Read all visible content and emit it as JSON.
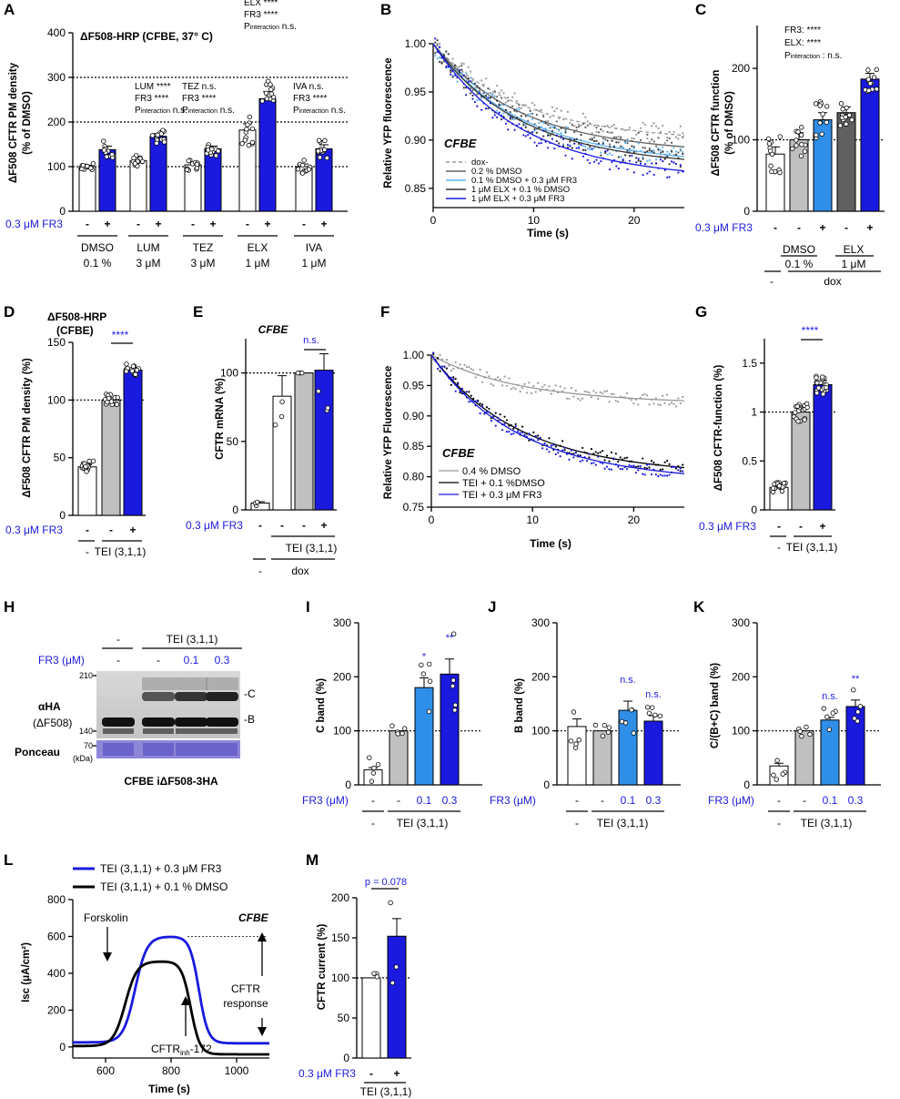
{
  "colors": {
    "blue": "#1a1adf",
    "lightblue": "#2f8fe8",
    "gray": "#c0c0c0",
    "darkgray": "#606060",
    "black": "#000000"
  },
  "panels": {
    "A": {
      "label": "A",
      "title": "ΔF508-HRP (CFBE, 37° C)",
      "ylabel": "ΔF508 CFTR PM density",
      "ylabel2": "(% of DMSO)",
      "fr3_label": "0.3 μM FR3",
      "minus": "-",
      "plus": "+",
      "groups": [
        {
          "name": "DMSO",
          "conc": "0.1 %"
        },
        {
          "name": "LUM",
          "conc": "3 μM"
        },
        {
          "name": "TEZ",
          "conc": "3 μM"
        },
        {
          "name": "ELX",
          "conc": "1 μM"
        },
        {
          "name": "IVA",
          "conc": "1 μM"
        }
      ],
      "stats": {
        "lum1": "LUM ****",
        "lum2": "FR3 ****",
        "lum3": "P",
        "lum3b": "interaction",
        "lum3c": " n.s.",
        "tez1": "TEZ n.s.",
        "tez2": "FR3 ****",
        "elx1": "ELX ****",
        "elx2": "FR3 ****",
        "iva1": "IVA n.s.",
        "iva2": "FR3 ****"
      }
    },
    "B": {
      "label": "B",
      "ylabel": "Relative YFP fluorescence",
      "xlabel": "Time (s)",
      "cell": "CFBE",
      "legend": [
        "dox-",
        "0.2 % DMSO",
        "0.1 % DMSO + 0.3 μM FR3",
        "1 μM ELX + 0.1 % DMSO",
        "1 μM ELX + 0.3 μM FR3"
      ]
    },
    "C": {
      "label": "C",
      "ylabel": "ΔF508 CFTR function",
      "ylabel2": "(% of DMSO)",
      "s1": "FR3: ****",
      "s2": "ELX: ****",
      "s3a": "P",
      "s3b": "interaction",
      "s3c": " : n.s.",
      "fr3_label": "0.3 μM FR3",
      "g1": "DMSO",
      "g1c": "0.1 %",
      "g2": "ELX",
      "g2c": "1 μM",
      "dox": "dox",
      "minus": "-"
    },
    "D": {
      "label": "D",
      "title1": "ΔF508-HRP",
      "title2": "(CFBE)",
      "ylabel": "ΔF508 CFTR PM density (%)",
      "sig": "****",
      "fr3_label": "0.3 μM FR3",
      "tei": "TEI (3,1,1)",
      "minus": "-",
      "plus": "+"
    },
    "E": {
      "label": "E",
      "title": "CFBE",
      "ylabel": "CFTR mRNA (%)",
      "sig": "n.s.",
      "fr3_label": "0.3 μM FR3",
      "tei": "TEI (3,1,1)",
      "dox": "dox",
      "minus": "-",
      "plus": "+"
    },
    "F": {
      "label": "F",
      "ylabel": "Relative YFP Fluorescence",
      "xlabel": "Time (s)",
      "cell": "CFBE",
      "legend": [
        "0.4 % DMSO",
        "TEI + 0.1 %DMSO",
        "TEI + 0.3 μM FR3"
      ]
    },
    "G": {
      "label": "G",
      "ylabel": "ΔF508 CFTR-function (%)",
      "sig": "****",
      "fr3_label": "0.3 μM FR3",
      "tei": "TEI (3,1,1)",
      "minus": "-",
      "plus": "+"
    },
    "H": {
      "label": "H",
      "tei": "TEI (3,1,1)",
      "fr3": "FR3 (μM)",
      "lanes": [
        "-",
        "-",
        "0.1",
        "0.3"
      ],
      "top_minus": "-",
      "ab": "αHA",
      "ab2": "(ΔF508)",
      "ponceau": "Ponceau",
      "m210": "210",
      "m140": "140",
      "m70": "70",
      "kda": "(kDa)",
      "bandC": "-C",
      "bandB": "-B",
      "caption": "CFBE iΔF508-3HA"
    },
    "I": {
      "label": "I",
      "ylabel": "C band (%)",
      "fr3": "FR3 (μM)",
      "tei": "TEI (3,1,1)",
      "sig": [
        "*",
        "**"
      ]
    },
    "J": {
      "label": "J",
      "ylabel": "B band (%)",
      "fr3": "FR3 (μM)",
      "tei": "TEI (3,1,1)",
      "sig": [
        "n.s.",
        "n.s."
      ]
    },
    "K": {
      "label": "K",
      "ylabel": "C/(B+C) band (%)",
      "fr3": "FR3 (μM)",
      "tei": "TEI (3,1,1)",
      "sig": [
        "n.s.",
        "**"
      ]
    },
    "L": {
      "label": "L",
      "leg1": "TEI (3,1,1) + 0.3 μM FR3",
      "leg2": "TEI (3,1,1) + 0.1 % DMSO",
      "ylabel": "Isc (μA/cm²)",
      "xlabel": "Time (s)",
      "forskolin": "Forskolin",
      "cell": "CFBE",
      "inh": "CFTR",
      "inh_sub": "inh",
      "inh_suf": "-172",
      "resp1": "CFTR",
      "resp2": "response"
    },
    "M": {
      "label": "M",
      "ylabel": "CFTR current (%)",
      "p": "p = 0.078",
      "fr3_label": "0.3 μM FR3",
      "tei": "TEI (3,1,1)",
      "minus": "-",
      "plus": "+"
    }
  },
  "chart_data": [
    {
      "panel": "A",
      "type": "bar",
      "ylim": [
        0,
        400
      ],
      "yticks": [
        0,
        100,
        200,
        300,
        400
      ],
      "refline": [
        100,
        200,
        300
      ],
      "categories": [
        "DMSO -",
        "DMSO +",
        "LUM -",
        "LUM +",
        "TEZ -",
        "TEZ +",
        "ELX -",
        "ELX +",
        "IVA -",
        "IVA +"
      ],
      "values": [
        100,
        138,
        113,
        168,
        104,
        140,
        182,
        252,
        100,
        140
      ],
      "errors": [
        3,
        8,
        5,
        6,
        5,
        6,
        14,
        16,
        6,
        9
      ]
    },
    {
      "panel": "B",
      "type": "line",
      "xlim": [
        0,
        25
      ],
      "ylim": [
        0.83,
        1.0
      ],
      "xticks": [
        0,
        10,
        20
      ],
      "yticks": [
        0.85,
        0.9,
        0.95,
        1.0
      ],
      "series": [
        {
          "name": "dox-",
          "end": 0.905
        },
        {
          "name": "0.2 % DMSO",
          "end": 0.893
        },
        {
          "name": "0.1 % DMSO + 0.3 μM FR3",
          "end": 0.883
        },
        {
          "name": "1 μM ELX + 0.1 % DMSO",
          "end": 0.88
        },
        {
          "name": "1 μM ELX + 0.3 μM FR3",
          "end": 0.868
        }
      ]
    },
    {
      "panel": "C",
      "type": "bar",
      "ylim": [
        0,
        260
      ],
      "yticks": [
        0,
        100,
        200
      ],
      "refline": 100,
      "categories": [
        "dox-",
        "DMSO -",
        "DMSO +",
        "ELX -",
        "ELX +"
      ],
      "values": [
        80,
        100,
        128,
        138,
        185
      ],
      "errors": [
        10,
        10,
        10,
        8,
        8
      ]
    },
    {
      "panel": "D",
      "type": "bar",
      "ylim": [
        0,
        150
      ],
      "yticks": [
        0,
        50,
        100,
        150
      ],
      "refline": 100,
      "categories": [
        "-",
        "TEI -",
        "TEI +"
      ],
      "values": [
        42,
        100,
        126
      ],
      "errors": [
        2,
        2,
        2
      ]
    },
    {
      "panel": "E",
      "type": "bar",
      "ylim": [
        0,
        125
      ],
      "yticks": [
        0,
        50,
        100
      ],
      "refline": 100,
      "categories": [
        "dox -",
        "-",
        "TEI -",
        "TEI +"
      ],
      "values": [
        5,
        83,
        100,
        102
      ],
      "errors": [
        1,
        15,
        0,
        12
      ]
    },
    {
      "panel": "F",
      "type": "line",
      "xlim": [
        0,
        25
      ],
      "ylim": [
        0.75,
        1.0
      ],
      "xticks": [
        0,
        10,
        20
      ],
      "yticks": [
        0.75,
        0.8,
        0.85,
        0.9,
        0.95,
        1.0
      ],
      "series": [
        {
          "name": "0.4 % DMSO",
          "end": 0.925
        },
        {
          "name": "TEI + 0.1 %DMSO",
          "end": 0.815
        },
        {
          "name": "TEI + 0.3 μM FR3",
          "end": 0.805
        }
      ]
    },
    {
      "panel": "G",
      "type": "bar",
      "ylim": [
        0,
        1.75
      ],
      "yticks": [
        0,
        0.5,
        1.0,
        1.5
      ],
      "refline": 1,
      "categories": [
        "-",
        "TEI -",
        "TEI +"
      ],
      "values": [
        0.23,
        1.0,
        1.28
      ],
      "errors": [
        0.02,
        0.04,
        0.04
      ]
    },
    {
      "panel": "I",
      "type": "bar",
      "ylim": [
        0,
        300
      ],
      "yticks": [
        0,
        100,
        200,
        300
      ],
      "refline": 100,
      "categories": [
        "-",
        "TEI -",
        "TEI 0.1",
        "TEI 0.3"
      ],
      "values": [
        28,
        100,
        180,
        205
      ],
      "errors": [
        4,
        0,
        18,
        28
      ]
    },
    {
      "panel": "J",
      "type": "bar",
      "ylim": [
        0,
        300
      ],
      "yticks": [
        0,
        100,
        200,
        300
      ],
      "refline": 100,
      "categories": [
        "-",
        "TEI -",
        "TEI 0.1",
        "TEI 0.3"
      ],
      "values": [
        108,
        100,
        138,
        118
      ],
      "errors": [
        14,
        0,
        17,
        10
      ]
    },
    {
      "panel": "K",
      "type": "bar",
      "ylim": [
        0,
        300
      ],
      "yticks": [
        0,
        100,
        200,
        300
      ],
      "refline": 100,
      "categories": [
        "-",
        "TEI -",
        "TEI 0.1",
        "TEI 0.3"
      ],
      "values": [
        35,
        100,
        120,
        145
      ],
      "errors": [
        5,
        0,
        5,
        12
      ]
    },
    {
      "panel": "L",
      "type": "line",
      "xlim": [
        500,
        1100
      ],
      "ylim": [
        -60,
        800
      ],
      "xticks": [
        600,
        800,
        1000
      ],
      "yticks": [
        0,
        200,
        400,
        600,
        800
      ],
      "series": [
        {
          "name": "TEI (3,1,1) + 0.3 μM FR3",
          "peak": 600
        },
        {
          "name": "TEI (3,1,1) + 0.1 % DMSO",
          "peak": 465
        }
      ]
    },
    {
      "panel": "M",
      "type": "bar",
      "ylim": [
        0,
        200
      ],
      "yticks": [
        0,
        50,
        100,
        150,
        200
      ],
      "refline": 100,
      "categories": [
        "-",
        "+"
      ],
      "values": [
        100,
        152
      ],
      "errors": [
        0,
        22
      ]
    }
  ]
}
